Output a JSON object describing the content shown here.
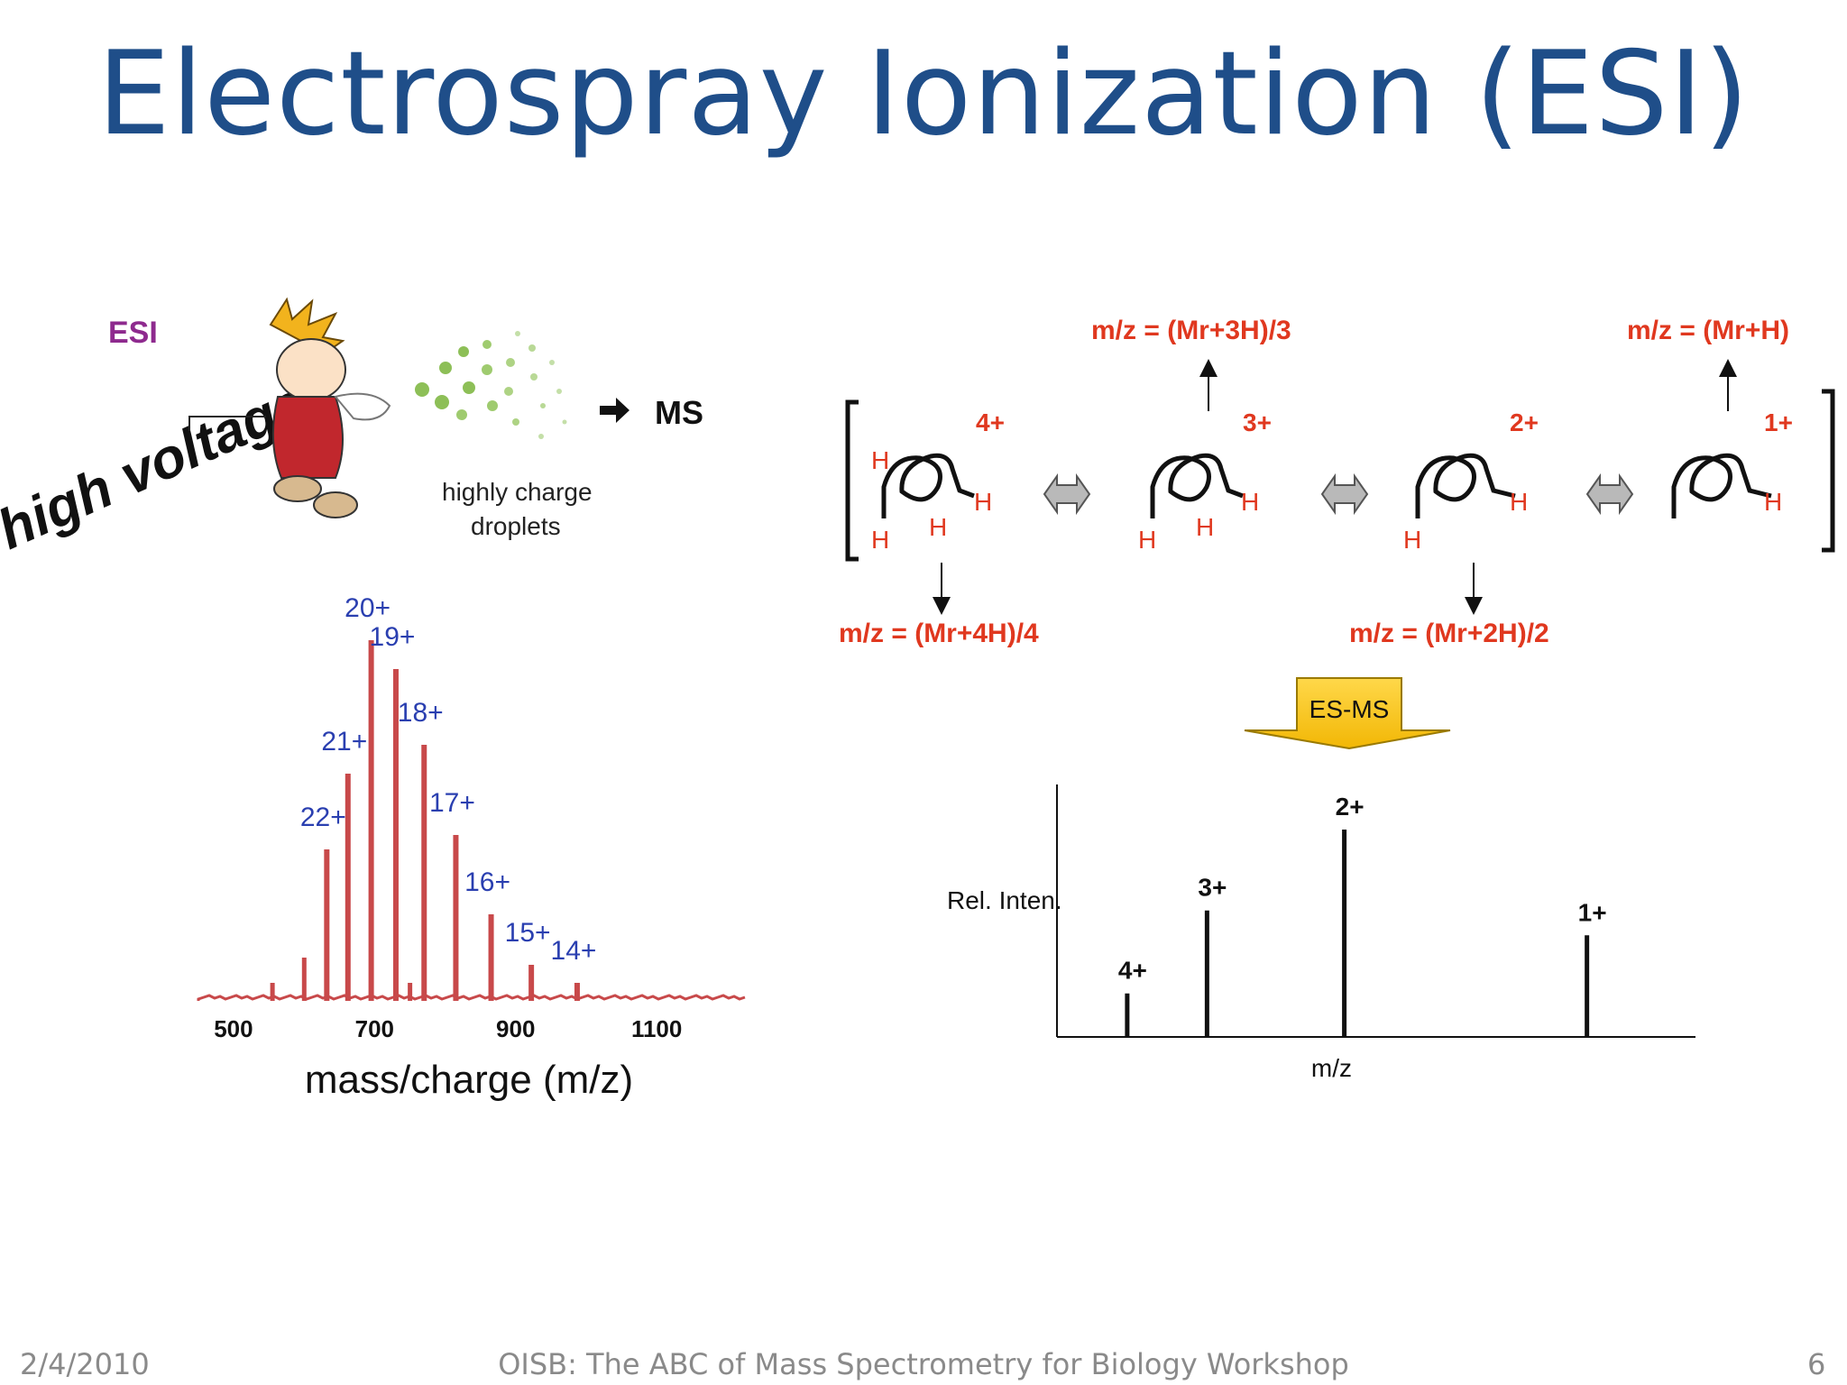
{
  "slide": {
    "title": "Electrospray Ionization (ESI)",
    "footer": {
      "date": "2/4/2010",
      "center": "OISB: The ABC of Mass Spectrometry for Biology Workshop",
      "page_number": "6"
    }
  },
  "esi_illustration": {
    "esi_label": "ESI",
    "high_voltage_label": "high voltage",
    "droplets_label_line1": "highly charge",
    "droplets_label_line2": "droplets",
    "ms_label": "MS"
  },
  "scheme": {
    "formulas": {
      "f3": "m/z = (Mr+3H)/3",
      "f1": "m/z = (Mr+H)",
      "f4": "m/z = (Mr+4H)/4",
      "f2": "m/z = (Mr+2H)/2"
    },
    "charges": [
      "4+",
      "3+",
      "2+",
      "1+"
    ],
    "h_label": "H",
    "arrow_label": "ES-MS"
  },
  "chart_data": [
    {
      "type": "line",
      "title": "",
      "xlabel": "mass/charge (m/z)",
      "ylabel": "",
      "xlim": [
        440,
        1220
      ],
      "xticks": [
        500,
        700,
        900,
        1100
      ],
      "color": "#c8494a",
      "peaks": [
        {
          "label": "22+",
          "mz": 622,
          "rel": 0.42
        },
        {
          "label": "21+",
          "mz": 652,
          "rel": 0.63
        },
        {
          "label": "20+",
          "mz": 685,
          "rel": 1.0
        },
        {
          "label": "19+",
          "mz": 720,
          "rel": 0.92
        },
        {
          "label": "18+",
          "mz": 760,
          "rel": 0.71
        },
        {
          "label": "17+",
          "mz": 805,
          "rel": 0.46
        },
        {
          "label": "16+",
          "mz": 855,
          "rel": 0.24
        },
        {
          "label": "15+",
          "mz": 912,
          "rel": 0.1
        },
        {
          "label": "14+",
          "mz": 977,
          "rel": 0.05
        }
      ],
      "minor_peaks": [
        {
          "mz": 545,
          "rel": 0.05
        },
        {
          "mz": 590,
          "rel": 0.12
        },
        {
          "mz": 740,
          "rel": 0.05
        }
      ]
    },
    {
      "type": "bar",
      "title": "",
      "xlabel": "m/z",
      "ylabel": "Rel. Inten.",
      "categories": [
        "4+",
        "3+",
        "2+",
        "1+"
      ],
      "x": [
        0.11,
        0.235,
        0.45,
        0.83
      ],
      "values": [
        0.21,
        0.61,
        1.0,
        0.49
      ]
    }
  ]
}
